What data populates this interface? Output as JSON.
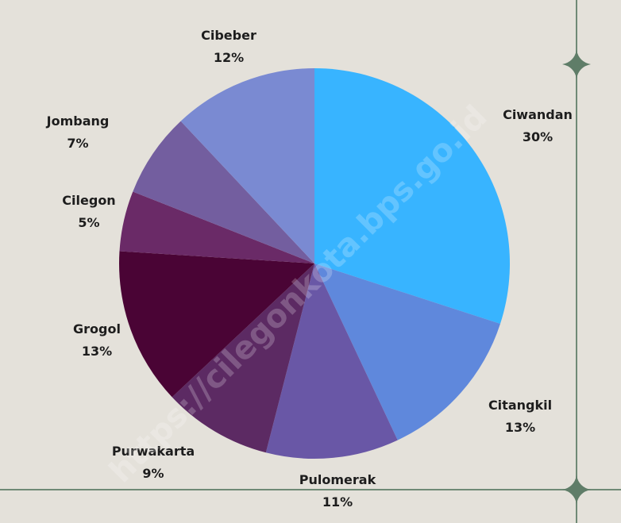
{
  "chart_data": {
    "type": "pie",
    "title": "",
    "categories": [
      "Ciwandan",
      "Citangkil",
      "Pulomerak",
      "Purwakarta",
      "Grogol",
      "Cilegon",
      "Jombang",
      "Cibeber"
    ],
    "values": [
      30,
      13,
      11,
      9,
      13,
      5,
      7,
      12
    ],
    "value_labels": [
      "30%",
      "13%",
      "11%",
      "9%",
      "13%",
      "5%",
      "7%",
      "12%"
    ],
    "colors": [
      "#38b4ff",
      "#5f88dc",
      "#6957a6",
      "#5c2a63",
      "#4a0435",
      "#6a2a67",
      "#735e9f",
      "#7a8ad2"
    ],
    "unit": "%",
    "legend": "none"
  },
  "watermark": "https://cilegonkota.bps.go.id",
  "decoration": {
    "star_icon": "four-point-star-icon",
    "line_color": "#6f8a76",
    "star_color": "#5f7d68"
  }
}
